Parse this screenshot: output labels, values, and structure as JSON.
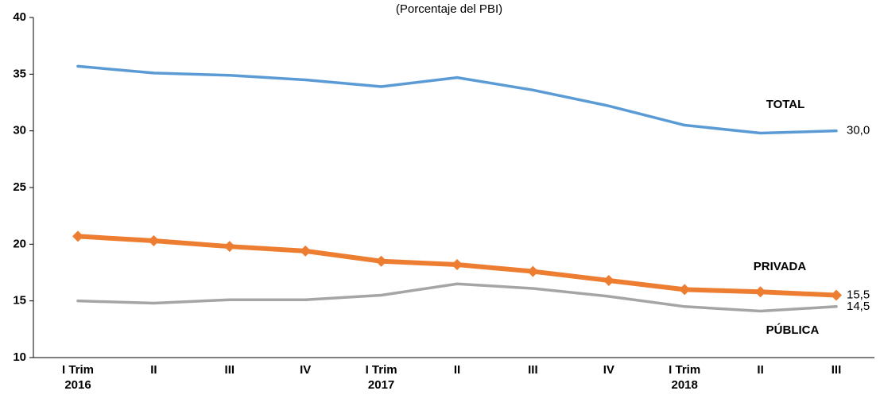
{
  "chart_data": {
    "type": "line",
    "subtitle": "(Porcentaje del PBI)",
    "categories": [
      "I Trim\n2016",
      "II",
      "III",
      "IV",
      "I Trim\n2017",
      "II",
      "III",
      "IV",
      "I Trim\n2018",
      "II",
      "III"
    ],
    "series": [
      {
        "name": "TOTAL",
        "color": "#5b9bd5",
        "values": [
          35.7,
          35.1,
          34.9,
          34.5,
          33.9,
          34.7,
          33.6,
          32.2,
          30.5,
          29.8,
          30.0
        ],
        "value_labels": [
          null,
          null,
          null,
          null,
          null,
          null,
          null,
          null,
          null,
          null,
          "30,0"
        ]
      },
      {
        "name": "PRIVADA",
        "color": "#ed7d31",
        "marker": "diamond",
        "values": [
          20.7,
          20.3,
          19.8,
          19.4,
          18.5,
          18.2,
          17.6,
          16.8,
          16.0,
          15.8,
          15.5
        ],
        "value_labels": [
          null,
          null,
          null,
          null,
          null,
          null,
          null,
          null,
          null,
          null,
          "15,5"
        ]
      },
      {
        "name": "PÚBLICA",
        "color": "#a5a5a5",
        "values": [
          15.0,
          14.8,
          15.1,
          15.1,
          15.5,
          16.5,
          16.1,
          15.4,
          14.5,
          14.1,
          14.5
        ],
        "value_labels": [
          null,
          null,
          null,
          null,
          null,
          null,
          null,
          null,
          null,
          null,
          "14,5"
        ]
      }
    ],
    "ylim": [
      10,
      40
    ],
    "yticks": [
      10,
      15,
      20,
      25,
      30,
      35,
      40
    ],
    "grid": false
  }
}
